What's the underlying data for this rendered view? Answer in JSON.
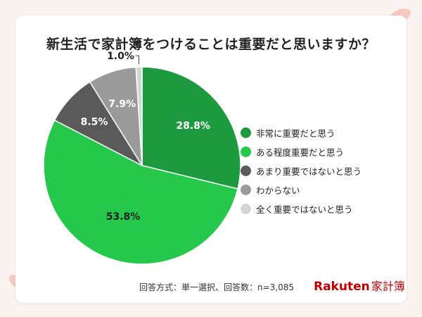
{
  "title": "新生活で家計簿をつけることは重要だと思いますか？",
  "footer_note": "回答方式：単一選択、回答数：n=3,085",
  "brand": {
    "name": "Rakuten",
    "sub": "家計簿"
  },
  "chart_data": {
    "type": "pie",
    "title": "新生活で家計簿をつけることは重要だと思いますか？",
    "legend_placement": "right",
    "slices": [
      {
        "label": "非常に重要だと思う",
        "value": 28.8,
        "display": "28.8%",
        "color": "#1c9a3d"
      },
      {
        "label": "ある程度重要だと思う",
        "value": 53.8,
        "display": "53.8%",
        "color": "#25c84a"
      },
      {
        "label": "あまり重要ではないと思う",
        "value": 8.5,
        "display": "8.5%",
        "color": "#5a5a5a"
      },
      {
        "label": "わからない",
        "value": 7.9,
        "display": "7.9%",
        "color": "#9a9a9a"
      },
      {
        "label": "全く重要ではないと思う",
        "value": 1.0,
        "display": "1.0%",
        "color": "#d6d6d6"
      }
    ]
  }
}
